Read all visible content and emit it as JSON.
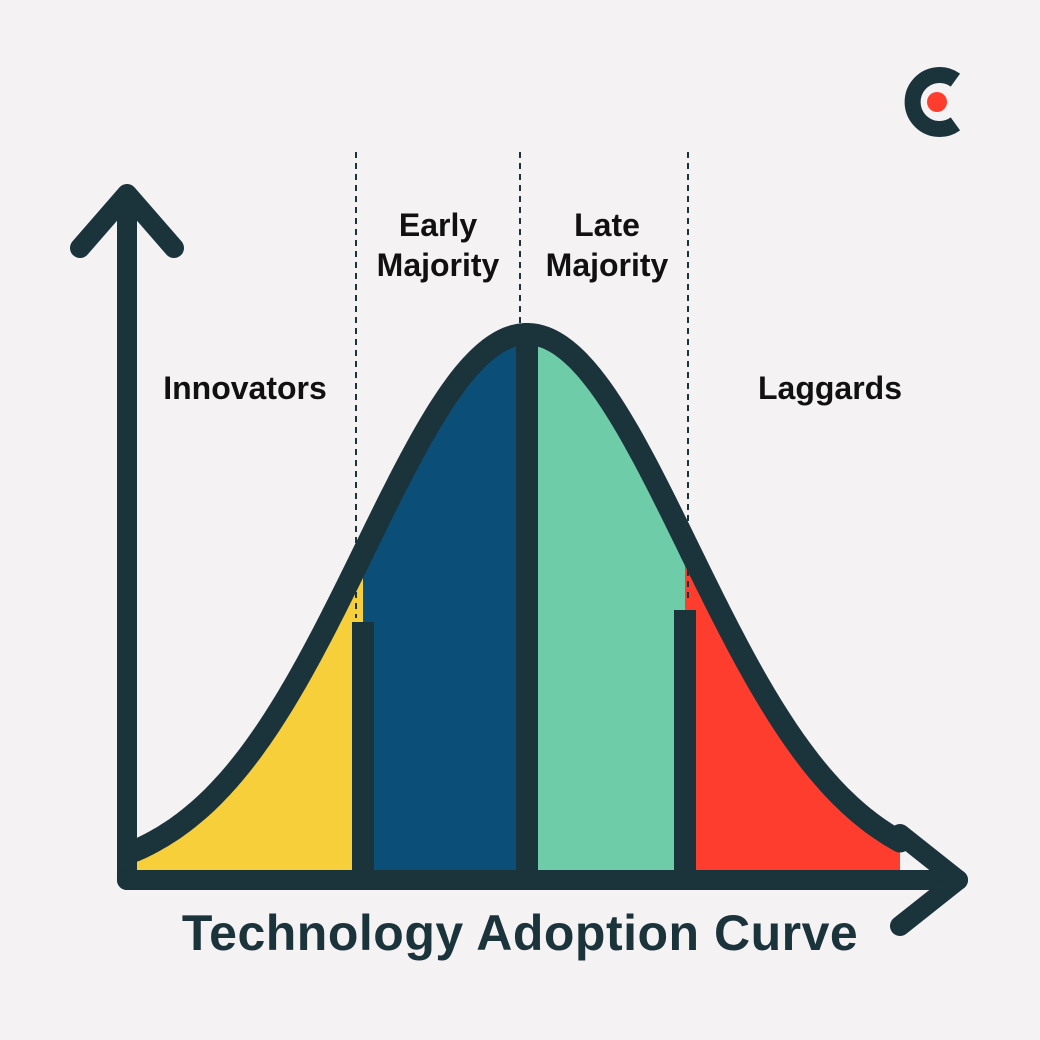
{
  "title": "Technology Adoption Curve",
  "segments": [
    {
      "id": "innovators",
      "label": "Innovators",
      "color": "#f6cf3b"
    },
    {
      "id": "early-majority",
      "label": "Early\nMajority",
      "color": "#0b4f79"
    },
    {
      "id": "late-majority",
      "label": "Late\nMajority",
      "color": "#6ecca8"
    },
    {
      "id": "laggards",
      "label": "Laggards",
      "color": "#ff3d2e"
    }
  ],
  "colors": {
    "ink": "#1b333b",
    "background": "#f5f2f3",
    "logo_dot": "#ff3d2e"
  },
  "logo": {
    "icon": "c-logo-icon"
  }
}
